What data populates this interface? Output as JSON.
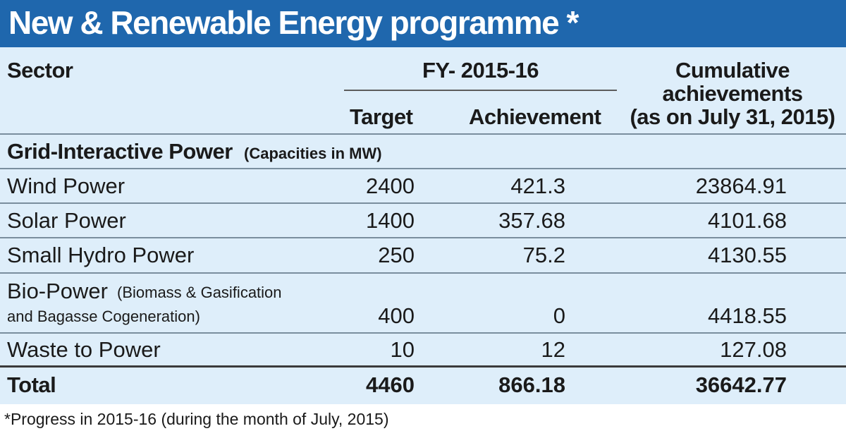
{
  "title": "New & Renewable Energy programme *",
  "headers": {
    "sector": "Sector",
    "fy": "FY- 2015-16",
    "target": "Target",
    "achievement": "Achievement",
    "cumulative_line1": "Cumulative",
    "cumulative_line2": "achievements",
    "cumulative_line3": "(as on July 31, 2015)"
  },
  "section": {
    "label": "Grid-Interactive Power",
    "note": "(Capacities in MW)"
  },
  "rows": [
    {
      "sector": "Wind Power",
      "target": "2400",
      "achievement": "421.3",
      "cumulative": "23864.91"
    },
    {
      "sector": "Solar Power",
      "target": "1400",
      "achievement": "357.68",
      "cumulative": "4101.68"
    },
    {
      "sector": "Small Hydro Power",
      "target": "250",
      "achievement": "75.2",
      "cumulative": "4130.55"
    },
    {
      "sector": "Bio-Power",
      "sector_note_line1": "(Biomass & Gasification",
      "sector_note_line2": "and Bagasse Cogeneration)",
      "target": "400",
      "achievement": "0",
      "cumulative": "4418.55"
    },
    {
      "sector": "Waste to Power",
      "target": "10",
      "achievement": "12",
      "cumulative": "127.08"
    }
  ],
  "total": {
    "sector": "Total",
    "target": "4460",
    "achievement": "866.18",
    "cumulative": "36642.77"
  },
  "footnote": "*Progress in 2015-16 (during the month of July, 2015)",
  "colors": {
    "banner": "#1f67ad",
    "table_background": "#deeefa",
    "text": "#1a1a1a"
  }
}
